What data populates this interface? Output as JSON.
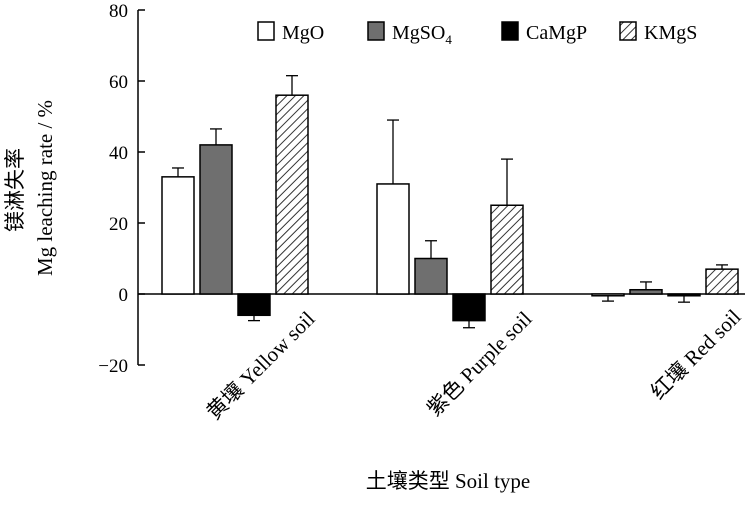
{
  "chart_data": {
    "type": "bar",
    "title": "",
    "xlabel": "土壤类型 Soil type",
    "ylabel_cn": "镁淋失率",
    "ylabel": "Mg leaching rate / %",
    "ylim": [
      -20,
      80
    ],
    "yticks": [
      -20,
      0,
      20,
      40,
      60,
      80
    ],
    "ytick_labels": [
      "−20",
      "0",
      "20",
      "40",
      "60",
      "80"
    ],
    "categories": [
      "黄壤 Yellow soil",
      "紫色 Purple soil",
      "红壤 Red soil"
    ],
    "legend_position": "top-right",
    "series": [
      {
        "name": "MgO",
        "name_main": "MgO",
        "name_sub": "",
        "fill": "white",
        "values": [
          33,
          31,
          -0.5
        ],
        "errors": [
          2.5,
          18,
          1.5
        ]
      },
      {
        "name": "MgSO4",
        "name_main": "MgSO",
        "name_sub": "4",
        "fill": "gray",
        "values": [
          42,
          10,
          1.2
        ],
        "errors": [
          4.5,
          5,
          2.2
        ]
      },
      {
        "name": "CaMgP",
        "name_main": "CaMgP",
        "name_sub": "",
        "fill": "black",
        "values": [
          -6,
          -7.5,
          -0.5
        ],
        "errors": [
          1.5,
          2,
          1.8
        ]
      },
      {
        "name": "KMgS",
        "name_main": "KMgS",
        "name_sub": "",
        "fill": "hatch",
        "values": [
          56,
          25,
          7
        ],
        "errors": [
          5.5,
          13,
          1.2
        ]
      }
    ],
    "colors": {
      "gray": "#6f6f6f",
      "black": "#000000",
      "white": "#ffffff",
      "hatch_line": "#333333"
    }
  }
}
